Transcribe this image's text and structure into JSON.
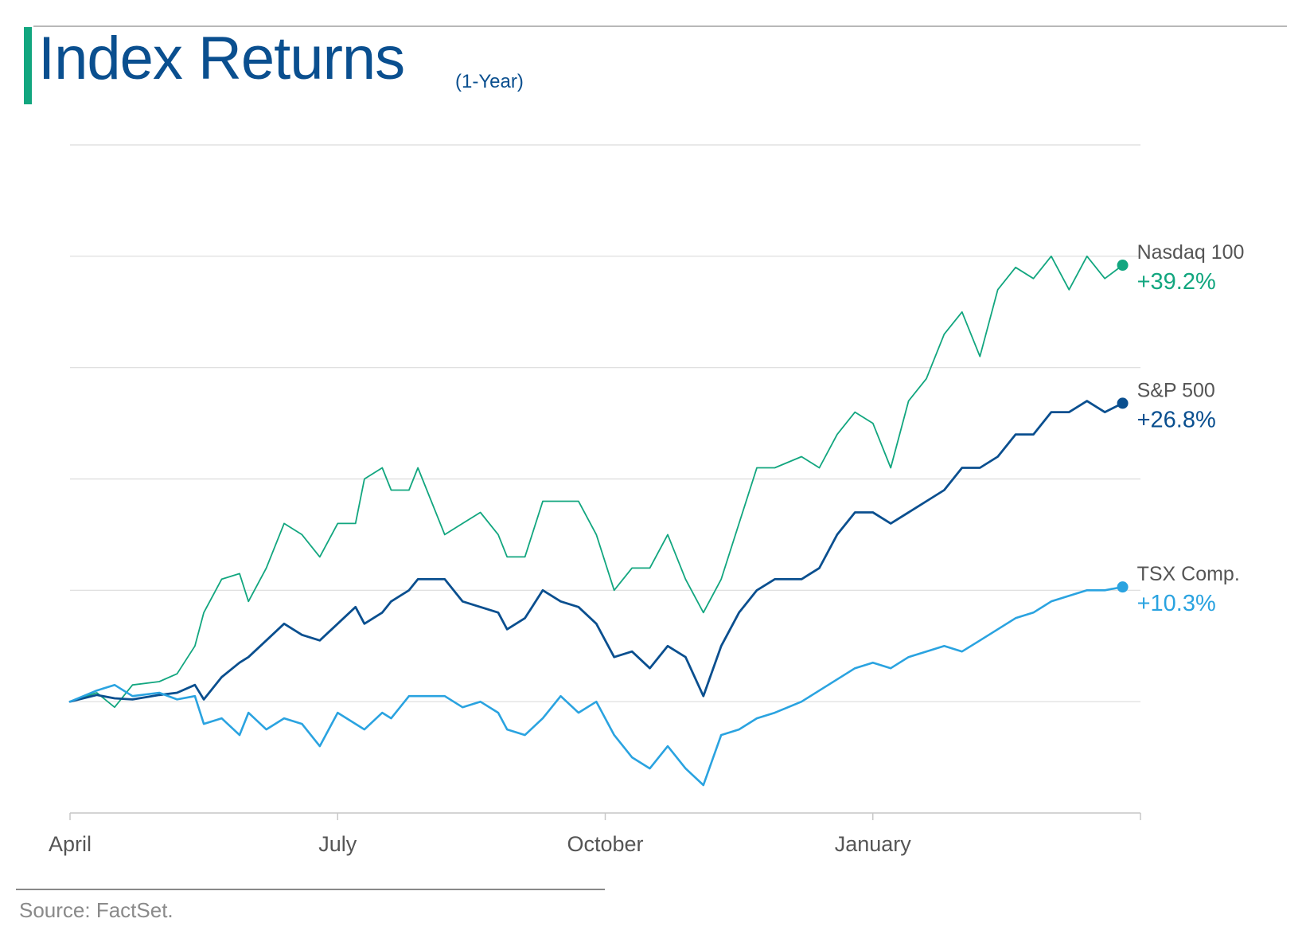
{
  "header": {
    "title": "Index Returns",
    "subtitle": "(1-Year)",
    "accent_color": "#12a67f"
  },
  "footer": {
    "source": "Source: FactSet."
  },
  "chart_data": {
    "type": "line",
    "title": "Index Returns",
    "subtitle": "(1-Year)",
    "xlabel": "",
    "ylabel": "",
    "x_ticks": [
      "April",
      "July",
      "October",
      "January"
    ],
    "x_tick_positions": [
      0,
      3,
      6,
      9
    ],
    "xlim": [
      0,
      12
    ],
    "ylim": [
      -10,
      50
    ],
    "grid_values": [
      -10,
      0,
      10,
      20,
      30,
      40,
      50
    ],
    "grid": "horizontal",
    "legend": "right end labels",
    "series": [
      {
        "name": "Nasdaq 100",
        "end_label": "+39.2%",
        "color": "#12a67f",
        "points": [
          [
            0,
            0
          ],
          [
            0.3,
            0.8
          ],
          [
            0.5,
            -0.5
          ],
          [
            0.7,
            1.5
          ],
          [
            1.0,
            1.8
          ],
          [
            1.2,
            2.5
          ],
          [
            1.4,
            5
          ],
          [
            1.5,
            8
          ],
          [
            1.7,
            11
          ],
          [
            1.9,
            11.5
          ],
          [
            2.0,
            9
          ],
          [
            2.2,
            12
          ],
          [
            2.4,
            16
          ],
          [
            2.6,
            15
          ],
          [
            2.8,
            13
          ],
          [
            3.0,
            16
          ],
          [
            3.2,
            16
          ],
          [
            3.3,
            20
          ],
          [
            3.5,
            21
          ],
          [
            3.6,
            19
          ],
          [
            3.8,
            19
          ],
          [
            3.9,
            21
          ],
          [
            4.2,
            15
          ],
          [
            4.4,
            16
          ],
          [
            4.6,
            17
          ],
          [
            4.8,
            15
          ],
          [
            4.9,
            13
          ],
          [
            5.1,
            13
          ],
          [
            5.3,
            18
          ],
          [
            5.5,
            18
          ],
          [
            5.7,
            18
          ],
          [
            5.9,
            15
          ],
          [
            6.1,
            10
          ],
          [
            6.3,
            12
          ],
          [
            6.5,
            12
          ],
          [
            6.7,
            15
          ],
          [
            6.9,
            11
          ],
          [
            7.1,
            8
          ],
          [
            7.3,
            11
          ],
          [
            7.5,
            16
          ],
          [
            7.7,
            21
          ],
          [
            7.9,
            21
          ],
          [
            8.2,
            22
          ],
          [
            8.4,
            21
          ],
          [
            8.6,
            24
          ],
          [
            8.8,
            26
          ],
          [
            9.0,
            25
          ],
          [
            9.2,
            21
          ],
          [
            9.4,
            27
          ],
          [
            9.6,
            29
          ],
          [
            9.8,
            33
          ],
          [
            10.0,
            35
          ],
          [
            10.2,
            31
          ],
          [
            10.4,
            37
          ],
          [
            10.6,
            39
          ],
          [
            10.8,
            38
          ],
          [
            11.0,
            40
          ],
          [
            11.2,
            37
          ],
          [
            11.4,
            40
          ],
          [
            11.6,
            38
          ],
          [
            11.8,
            39.2
          ]
        ]
      },
      {
        "name": "S&P 500",
        "end_label": "+26.8%",
        "color": "#0a4f8f",
        "points": [
          [
            0,
            0
          ],
          [
            0.3,
            0.6
          ],
          [
            0.5,
            0.3
          ],
          [
            0.7,
            0.2
          ],
          [
            1.0,
            0.6
          ],
          [
            1.2,
            0.8
          ],
          [
            1.4,
            1.5
          ],
          [
            1.5,
            0.2
          ],
          [
            1.7,
            2.2
          ],
          [
            1.9,
            3.5
          ],
          [
            2.0,
            4
          ],
          [
            2.2,
            5.5
          ],
          [
            2.4,
            7
          ],
          [
            2.6,
            6
          ],
          [
            2.8,
            5.5
          ],
          [
            3.0,
            7
          ],
          [
            3.2,
            8.5
          ],
          [
            3.3,
            7
          ],
          [
            3.5,
            8
          ],
          [
            3.6,
            9
          ],
          [
            3.8,
            10
          ],
          [
            3.9,
            11
          ],
          [
            4.2,
            11
          ],
          [
            4.4,
            9
          ],
          [
            4.6,
            8.5
          ],
          [
            4.8,
            8
          ],
          [
            4.9,
            6.5
          ],
          [
            5.1,
            7.5
          ],
          [
            5.3,
            10
          ],
          [
            5.5,
            9
          ],
          [
            5.7,
            8.5
          ],
          [
            5.9,
            7
          ],
          [
            6.1,
            4
          ],
          [
            6.3,
            4.5
          ],
          [
            6.5,
            3
          ],
          [
            6.7,
            5
          ],
          [
            6.9,
            4
          ],
          [
            7.1,
            0.5
          ],
          [
            7.3,
            5
          ],
          [
            7.5,
            8
          ],
          [
            7.7,
            10
          ],
          [
            7.9,
            11
          ],
          [
            8.2,
            11
          ],
          [
            8.4,
            12
          ],
          [
            8.6,
            15
          ],
          [
            8.8,
            17
          ],
          [
            9.0,
            17
          ],
          [
            9.2,
            16
          ],
          [
            9.4,
            17
          ],
          [
            9.6,
            18
          ],
          [
            9.8,
            19
          ],
          [
            10.0,
            21
          ],
          [
            10.2,
            21
          ],
          [
            10.4,
            22
          ],
          [
            10.6,
            24
          ],
          [
            10.8,
            24
          ],
          [
            11.0,
            26
          ],
          [
            11.2,
            26
          ],
          [
            11.4,
            27
          ],
          [
            11.6,
            26
          ],
          [
            11.8,
            26.8
          ]
        ]
      },
      {
        "name": "TSX Comp.",
        "end_label": "+10.3%",
        "color": "#2aa3e0",
        "points": [
          [
            0,
            0
          ],
          [
            0.3,
            1
          ],
          [
            0.5,
            1.5
          ],
          [
            0.7,
            0.5
          ],
          [
            1.0,
            0.8
          ],
          [
            1.2,
            0.2
          ],
          [
            1.4,
            0.5
          ],
          [
            1.5,
            -2
          ],
          [
            1.7,
            -1.5
          ],
          [
            1.9,
            -3
          ],
          [
            2.0,
            -1
          ],
          [
            2.2,
            -2.5
          ],
          [
            2.4,
            -1.5
          ],
          [
            2.6,
            -2
          ],
          [
            2.8,
            -4
          ],
          [
            3.0,
            -1
          ],
          [
            3.2,
            -2
          ],
          [
            3.3,
            -2.5
          ],
          [
            3.5,
            -1
          ],
          [
            3.6,
            -1.5
          ],
          [
            3.8,
            0.5
          ],
          [
            3.9,
            0.5
          ],
          [
            4.2,
            0.5
          ],
          [
            4.4,
            -0.5
          ],
          [
            4.6,
            0
          ],
          [
            4.8,
            -1
          ],
          [
            4.9,
            -2.5
          ],
          [
            5.1,
            -3
          ],
          [
            5.3,
            -1.5
          ],
          [
            5.5,
            0.5
          ],
          [
            5.7,
            -1
          ],
          [
            5.9,
            0
          ],
          [
            6.1,
            -3
          ],
          [
            6.3,
            -5
          ],
          [
            6.5,
            -6
          ],
          [
            6.7,
            -4
          ],
          [
            6.9,
            -6
          ],
          [
            7.1,
            -7.5
          ],
          [
            7.3,
            -3
          ],
          [
            7.5,
            -2.5
          ],
          [
            7.7,
            -1.5
          ],
          [
            7.9,
            -1
          ],
          [
            8.2,
            0
          ],
          [
            8.4,
            1
          ],
          [
            8.6,
            2
          ],
          [
            8.8,
            3
          ],
          [
            9.0,
            3.5
          ],
          [
            9.2,
            3
          ],
          [
            9.4,
            4
          ],
          [
            9.6,
            4.5
          ],
          [
            9.8,
            5
          ],
          [
            10.0,
            4.5
          ],
          [
            10.2,
            5.5
          ],
          [
            10.4,
            6.5
          ],
          [
            10.6,
            7.5
          ],
          [
            10.8,
            8
          ],
          [
            11.0,
            9
          ],
          [
            11.2,
            9.5
          ],
          [
            11.4,
            10
          ],
          [
            11.6,
            10
          ],
          [
            11.8,
            10.3
          ]
        ]
      }
    ]
  }
}
